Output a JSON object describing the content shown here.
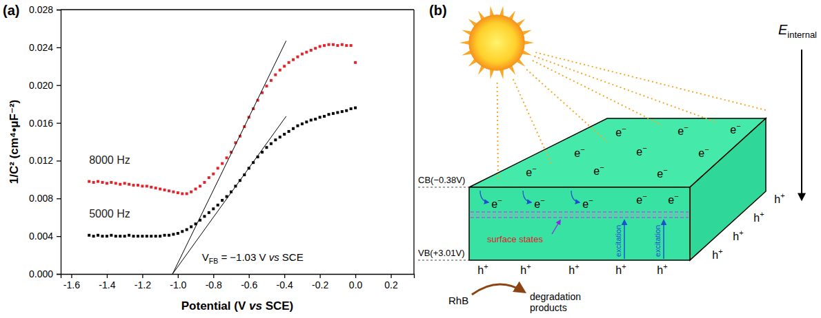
{
  "chart_data": {
    "type": "scatter",
    "panel": "(a)",
    "x_label": [
      {
        "text": "Potential (V "
      },
      {
        "text": "vs",
        "style": "italic"
      },
      {
        "text": " SCE)"
      }
    ],
    "y_label": "1/C² (cm⁴•μF⁻²)",
    "annotation": [
      {
        "text": "V"
      },
      {
        "text": "FB",
        "style": "sub"
      },
      {
        "text": " = −1.03 V "
      },
      {
        "text": "vs",
        "style": "italic"
      },
      {
        "text": " SCE"
      }
    ],
    "xlim": [
      -1.66,
      0.33
    ],
    "xticks": [
      -1.6,
      -1.4,
      -1.2,
      {
        "value": -1,
        "label": "-1.0"
      },
      -0.8,
      -0.6,
      -0.4,
      -0.2,
      {
        "value": 0,
        "label": "0.0"
      },
      0.2
    ],
    "ylim": [
      0,
      0.028
    ],
    "yticks": [
      {
        "value": 0,
        "label": "0.000"
      },
      0.004,
      0.008,
      0.012,
      0.016,
      {
        "value": 0.02,
        "label": "0.020"
      },
      0.024,
      0.028
    ],
    "series": [
      {
        "name": "8000 Hz",
        "color": "#e3242b",
        "marker": "square",
        "x": [
          -1.5,
          -1.475,
          -1.45,
          -1.425,
          -1.4,
          -1.375,
          -1.35,
          -1.325,
          -1.3,
          -1.275,
          -1.25,
          -1.225,
          -1.2,
          -1.175,
          -1.15,
          -1.125,
          -1.1,
          -1.075,
          -1.05,
          -1.025,
          -1,
          -0.975,
          -0.95,
          -0.925,
          -0.9,
          -0.875,
          -0.85,
          -0.825,
          -0.8,
          -0.775,
          -0.75,
          -0.725,
          -0.7,
          -0.675,
          -0.65,
          -0.625,
          -0.6,
          -0.575,
          -0.55,
          -0.525,
          -0.5,
          -0.475,
          -0.45,
          -0.425,
          -0.4,
          -0.375,
          -0.35,
          -0.325,
          -0.3,
          -0.275,
          -0.25,
          -0.225,
          -0.2,
          -0.175,
          -0.15,
          -0.125,
          -0.1,
          -0.075,
          -0.05,
          -0.025,
          0
        ],
        "values": [
          0.0098,
          0.0097,
          0.0098,
          0.0097,
          0.0096,
          0.0097,
          0.0096,
          0.0095,
          0.0096,
          0.0095,
          0.0094,
          0.0094,
          0.0093,
          0.0093,
          0.0092,
          0.0091,
          0.009,
          0.0089,
          0.0088,
          0.0087,
          0.0086,
          0.0085,
          0.0085,
          0.0087,
          0.009,
          0.0093,
          0.0097,
          0.0102,
          0.0106,
          0.0112,
          0.0117,
          0.0123,
          0.0129,
          0.0139,
          0.0146,
          0.0156,
          0.0166,
          0.0175,
          0.0184,
          0.0192,
          0.0199,
          0.0205,
          0.0211,
          0.0216,
          0.022,
          0.0224,
          0.0227,
          0.023,
          0.0233,
          0.0235,
          0.0237,
          0.0239,
          0.0241,
          0.0242,
          0.0243,
          0.0243,
          0.0242,
          0.0243,
          0.0242,
          0.0242,
          0.0224
        ]
      },
      {
        "name": "5000 Hz",
        "color": "#000000",
        "marker": "square",
        "x": [
          -1.5,
          -1.475,
          -1.45,
          -1.425,
          -1.4,
          -1.375,
          -1.35,
          -1.325,
          -1.3,
          -1.275,
          -1.25,
          -1.225,
          -1.2,
          -1.175,
          -1.15,
          -1.125,
          -1.1,
          -1.075,
          -1.05,
          -1.025,
          -1,
          -0.975,
          -0.95,
          -0.925,
          -0.9,
          -0.875,
          -0.85,
          -0.825,
          -0.8,
          -0.775,
          -0.75,
          -0.725,
          -0.7,
          -0.675,
          -0.65,
          -0.625,
          -0.6,
          -0.575,
          -0.55,
          -0.525,
          -0.5,
          -0.475,
          -0.45,
          -0.425,
          -0.4,
          -0.375,
          -0.35,
          -0.325,
          -0.3,
          -0.275,
          -0.25,
          -0.225,
          -0.2,
          -0.175,
          -0.15,
          -0.125,
          -0.1,
          -0.075,
          -0.05,
          -0.025,
          0
        ],
        "values": [
          0.0041,
          0.004,
          0.0041,
          0.004,
          0.004,
          0.0041,
          0.004,
          0.004,
          0.004,
          0.0041,
          0.004,
          0.004,
          0.004,
          0.004,
          0.004,
          0.004,
          0.004,
          0.0041,
          0.0041,
          0.0042,
          0.0043,
          0.0045,
          0.0047,
          0.005,
          0.0053,
          0.0057,
          0.0061,
          0.0065,
          0.0069,
          0.0073,
          0.0078,
          0.0082,
          0.0087,
          0.0093,
          0.0099,
          0.0105,
          0.0112,
          0.0118,
          0.0124,
          0.0129,
          0.0134,
          0.0138,
          0.0142,
          0.0145,
          0.0148,
          0.0151,
          0.0154,
          0.0157,
          0.0159,
          0.0161,
          0.0163,
          0.0164,
          0.0166,
          0.0167,
          0.0169,
          0.017,
          0.0171,
          0.0172,
          0.0173,
          0.0175,
          0.0176
        ]
      },
      {
        "type": "line",
        "color": "#000000",
        "line_style": "solid",
        "x": [
          -1.03,
          -0.39
        ],
        "values": [
          0,
          0.0247
        ]
      },
      {
        "type": "line",
        "color": "#000000",
        "line_style": "solid",
        "x": [
          -1.03,
          -0.39
        ],
        "values": [
          0,
          0.0167
        ]
      }
    ]
  },
  "diagram": {
    "panel": "(b)",
    "field": {
      "symbol": "E",
      "subscript": "internal"
    },
    "cb_label": "CB(−0.38V)",
    "vb_label": "VB(+3.01V)",
    "surface_states": "surface states",
    "excitation": "excitation",
    "electron": {
      "base": "e",
      "sup": "−"
    },
    "hole": {
      "base": "h",
      "sup": "+"
    },
    "dye": "RhB",
    "products": "degradation products"
  }
}
